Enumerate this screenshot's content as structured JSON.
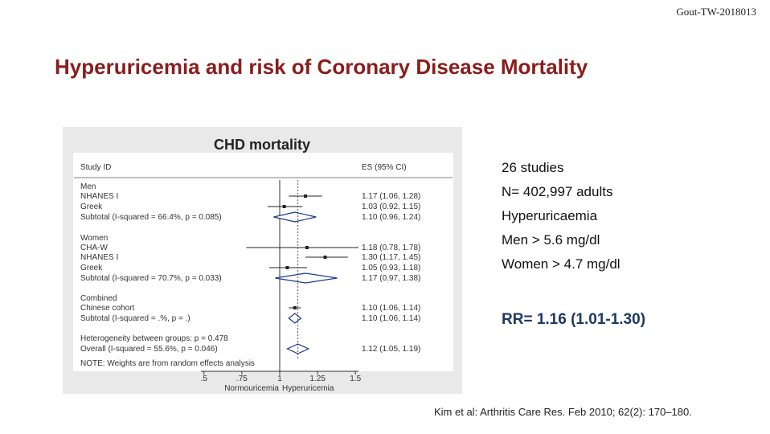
{
  "header": {
    "code": "Gout-TW-2018013",
    "title": "Hyperuricemia and risk of Coronary Disease Mortality"
  },
  "figure": {
    "title": "CHD mortality",
    "col_study": "Study ID",
    "col_es": "ES (95% CI)",
    "rows": [
      {
        "label": "Men"
      },
      {
        "label": "NHANES I",
        "es_label": "1.17 (1.06, 1.28)",
        "es": 1.17,
        "lo": 1.06,
        "hi": 1.28,
        "mark": "point"
      },
      {
        "label": "Greek",
        "es_label": "1.03 (0.92, 1.15)",
        "es": 1.03,
        "lo": 0.92,
        "hi": 1.15,
        "mark": "point"
      },
      {
        "label": "Subtotal  (I-squared = 66.4%, p = 0.085)",
        "es_label": "1.10 (0.96, 1.24)",
        "es": 1.1,
        "lo": 0.96,
        "hi": 1.24,
        "mark": "diamond"
      },
      {
        "label": "Women"
      },
      {
        "label": "CHA-W",
        "es_label": "1.18 (0.78, 1.78)",
        "es": 1.18,
        "lo": 0.78,
        "hi": 1.78,
        "mark": "point"
      },
      {
        "label": "NHANES I",
        "es_label": "1.30 (1.17, 1.45)",
        "es": 1.3,
        "lo": 1.17,
        "hi": 1.45,
        "mark": "point"
      },
      {
        "label": "Greek",
        "es_label": "1.05 (0.93, 1.18)",
        "es": 1.05,
        "lo": 0.93,
        "hi": 1.18,
        "mark": "point"
      },
      {
        "label": "Subtotal  (I-squared = 70.7%, p = 0.033)",
        "es_label": "1.17 (0.97, 1.38)",
        "es": 1.17,
        "lo": 0.97,
        "hi": 1.38,
        "mark": "diamond"
      },
      {
        "label": "Combined"
      },
      {
        "label": "Chinese cohort",
        "es_label": "1.10 (1.06, 1.14)",
        "es": 1.1,
        "lo": 1.06,
        "hi": 1.14,
        "mark": "point"
      },
      {
        "label": "Subtotal  (I-squared = .%, p = .)",
        "es_label": "1.10 (1.06, 1.14)",
        "es": 1.1,
        "lo": 1.06,
        "hi": 1.14,
        "mark": "diamond"
      },
      {
        "label": "Heterogeneity between groups: p = 0.478"
      },
      {
        "label": "Overall  (I-squared = 55.6%, p = 0.046)",
        "es_label": "1.12 (1.05, 1.19)",
        "es": 1.12,
        "lo": 1.05,
        "hi": 1.19,
        "mark": "diamond"
      }
    ],
    "note": "NOTE: Weights are from random effects analysis",
    "xlim": [
      0.48,
      1.52
    ],
    "xticks": [
      {
        "value": 0.5,
        "label": ".5"
      },
      {
        "value": 0.75,
        "label": ".75"
      },
      1,
      1.25,
      1.5
    ],
    "left_label": "Normouricemia",
    "right_label": "Hyperuricemia"
  },
  "summary": {
    "lines": [
      "26 studies",
      "N= 402,997 adults",
      "Hyperuricaemia",
      "Men > 5.6 mg/dl",
      "Women > 4.7 mg/dl"
    ],
    "rr": "RR= 1.16 (1.01-1.30)"
  },
  "citation": "Kim et al: Arthritis Care Res. Feb 2010; 62(2): 170–180."
}
